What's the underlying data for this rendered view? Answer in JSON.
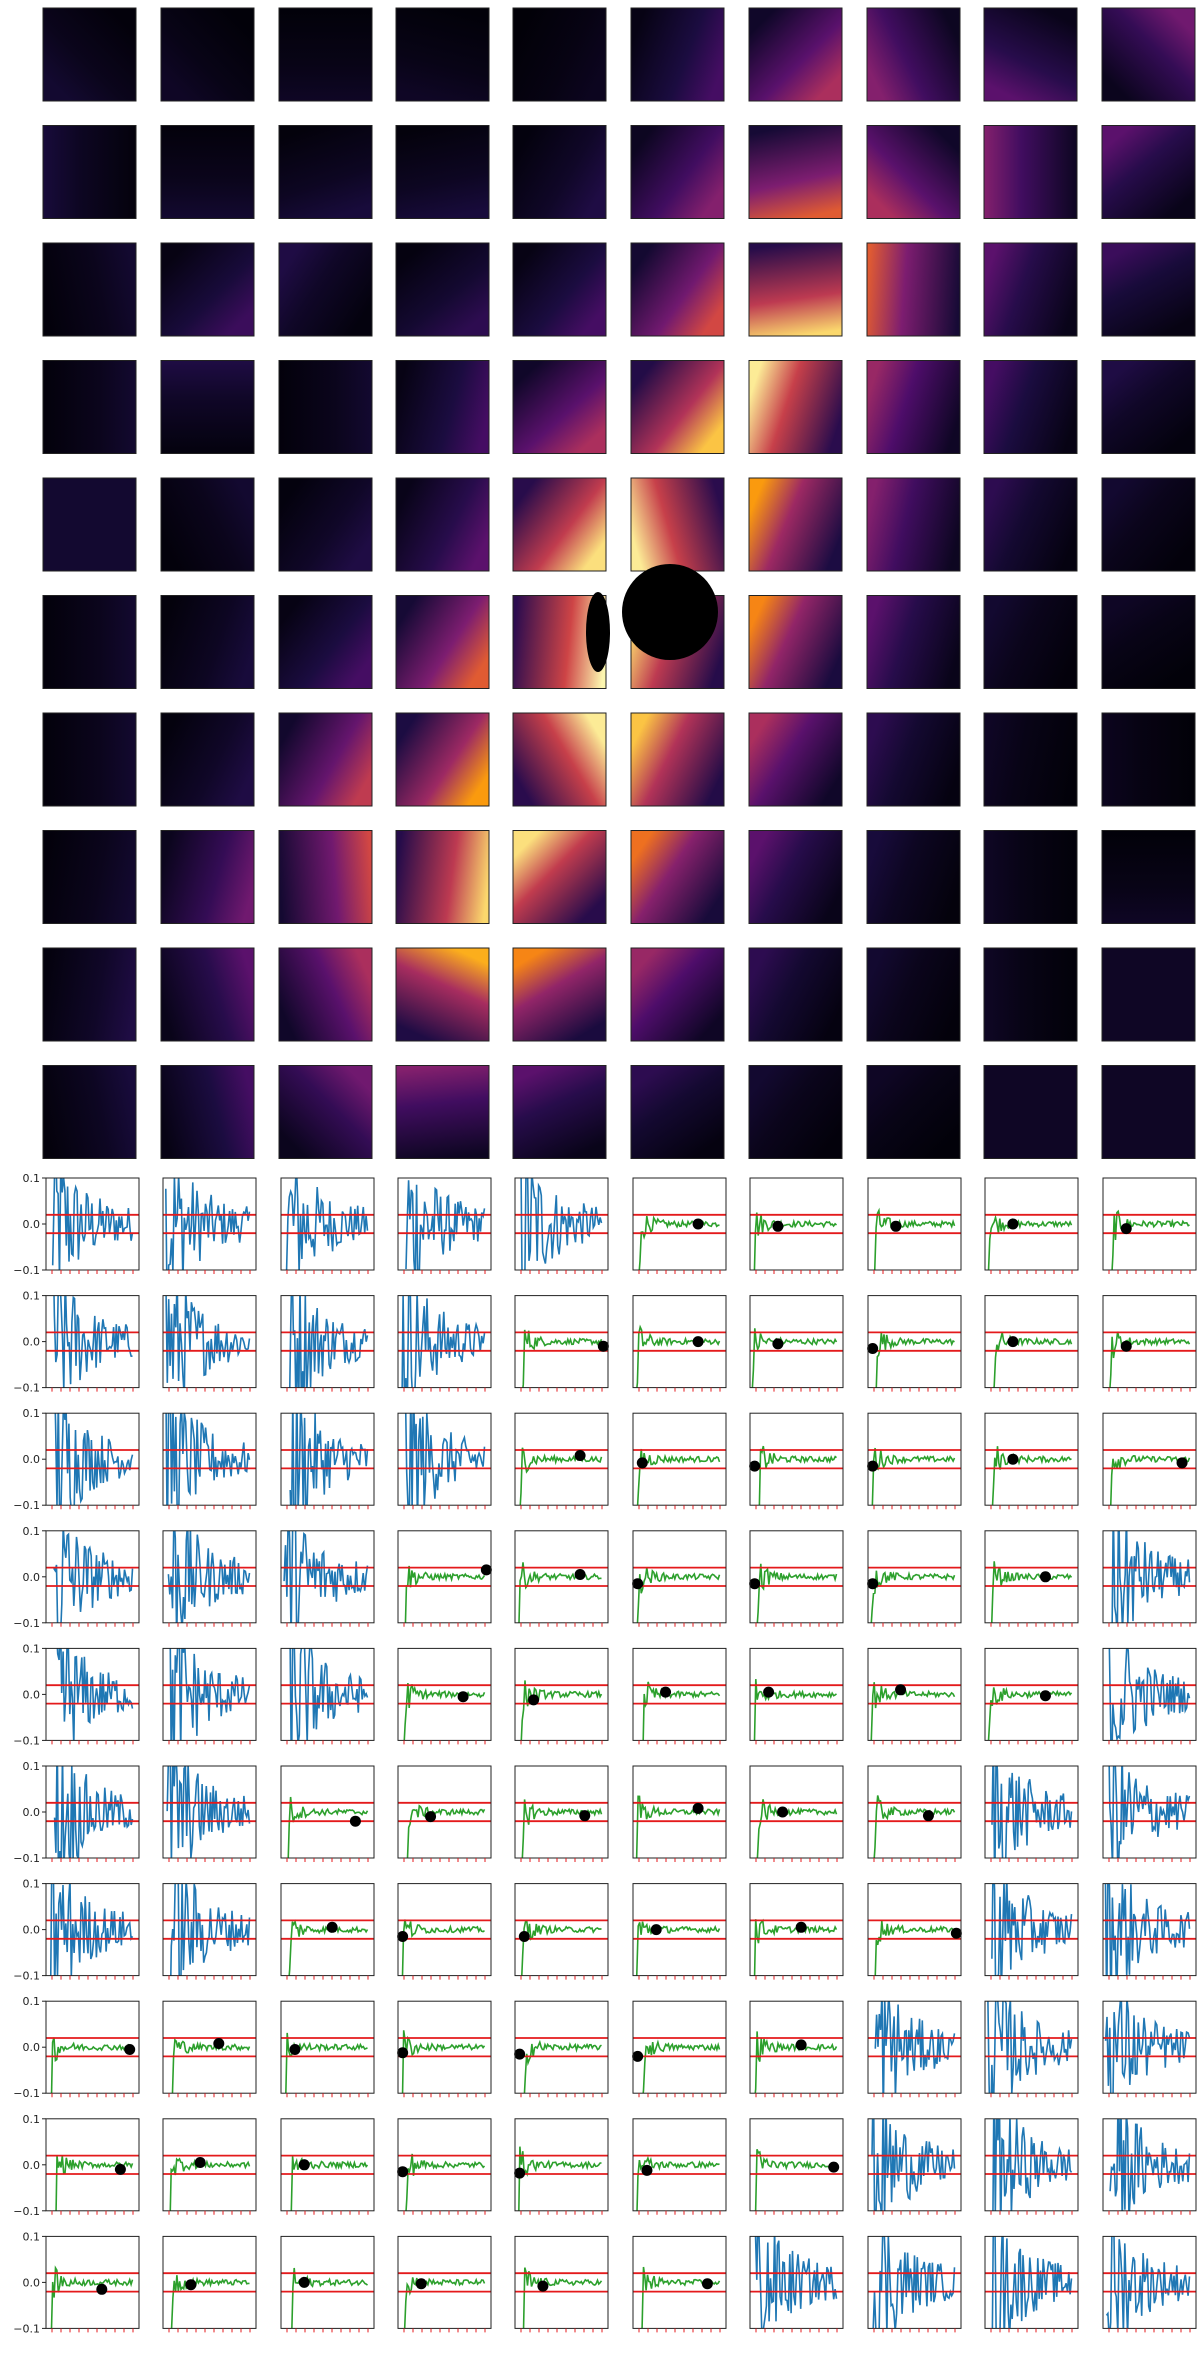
{
  "figure": {
    "title": "",
    "colormap_stops": [
      "#000004",
      "#1b0c41",
      "#4f0d6b",
      "#7e1e70",
      "#a92e5e",
      "#d44842",
      "#f3771a",
      "#fca50a",
      "#fbd464",
      "#fcfdbf"
    ]
  },
  "chart_data": [
    {
      "type": "heatmap",
      "grid_rows": 10,
      "grid_cols": 10,
      "cmap": "magma",
      "clim": [
        0,
        1
      ],
      "cell_peak_values": [
        [
          0.08,
          0.06,
          0.06,
          0.06,
          0.05,
          0.2,
          0.45,
          0.35,
          0.25,
          0.3
        ],
        [
          0.1,
          0.08,
          0.1,
          0.1,
          0.12,
          0.35,
          0.6,
          0.45,
          0.35,
          0.25
        ],
        [
          0.08,
          0.18,
          0.12,
          0.15,
          0.2,
          0.55,
          0.9,
          0.6,
          0.25,
          0.18
        ],
        [
          0.08,
          0.12,
          0.08,
          0.2,
          0.45,
          0.85,
          0.95,
          0.4,
          0.2,
          0.12
        ],
        [
          0.08,
          0.08,
          0.12,
          0.25,
          0.92,
          0.95,
          0.75,
          0.35,
          0.15,
          0.08
        ],
        [
          0.08,
          0.1,
          0.2,
          0.6,
          0.98,
          0.9,
          0.7,
          0.25,
          0.08,
          0.06
        ],
        [
          0.08,
          0.12,
          0.5,
          0.75,
          0.95,
          0.85,
          0.45,
          0.15,
          0.06,
          0.05
        ],
        [
          0.08,
          0.3,
          0.55,
          0.9,
          0.92,
          0.65,
          0.25,
          0.1,
          0.06,
          0.06
        ],
        [
          0.12,
          0.25,
          0.45,
          0.8,
          0.7,
          0.4,
          0.15,
          0.08,
          0.06,
          0.06
        ],
        [
          0.1,
          0.2,
          0.3,
          0.35,
          0.25,
          0.15,
          0.08,
          0.06,
          0.06,
          0.06
        ]
      ]
    },
    {
      "type": "line",
      "grid_rows": 10,
      "grid_cols": 10,
      "ylim": [
        -0.1,
        0.1
      ],
      "y_ticks": [
        "0.1",
        "0.0",
        "−0.1"
      ],
      "reference_lines_y": [
        0.02,
        -0.02
      ],
      "colors": {
        "converged": "#2ca02c",
        "unconverged": "#1f77b4",
        "reference": "#e41a1c",
        "marker": "#000000"
      },
      "panel_status": [
        [
          "U",
          "U",
          "U",
          "U",
          "U",
          "C",
          "C",
          "C",
          "C",
          "C"
        ],
        [
          "U",
          "U",
          "U",
          "U",
          "C",
          "C",
          "C",
          "C",
          "C",
          "C"
        ],
        [
          "U",
          "U",
          "U",
          "U",
          "C",
          "C",
          "C",
          "C",
          "C",
          "C"
        ],
        [
          "U",
          "U",
          "U",
          "C",
          "C",
          "C",
          "C",
          "C",
          "C",
          "U"
        ],
        [
          "U",
          "U",
          "U",
          "C",
          "C",
          "C",
          "C",
          "C",
          "C",
          "U"
        ],
        [
          "U",
          "U",
          "C",
          "C",
          "C",
          "C",
          "C",
          "C",
          "U",
          "U"
        ],
        [
          "U",
          "U",
          "C",
          "C",
          "C",
          "C",
          "C",
          "C",
          "U",
          "U"
        ],
        [
          "C",
          "C",
          "C",
          "C",
          "C",
          "C",
          "C",
          "U",
          "U",
          "U"
        ],
        [
          "C",
          "C",
          "C",
          "C",
          "C",
          "C",
          "C",
          "U",
          "U",
          "U"
        ],
        [
          "C",
          "C",
          "C",
          "C",
          "C",
          "C",
          "U",
          "U",
          "U",
          "U"
        ]
      ],
      "marker_points": [
        [
          null,
          null,
          null,
          null,
          null,
          {
            "x": 0.7,
            "y": 0.0
          },
          {
            "x": 0.3,
            "y": -0.005
          },
          {
            "x": 0.3,
            "y": -0.005
          },
          {
            "x": 0.3,
            "y": 0.0
          },
          {
            "x": 0.25,
            "y": -0.01
          }
        ],
        [
          null,
          null,
          null,
          null,
          {
            "x": 0.95,
            "y": -0.01
          },
          {
            "x": 0.7,
            "y": 0.0
          },
          {
            "x": 0.3,
            "y": -0.005
          },
          {
            "x": 0.05,
            "y": -0.015
          },
          {
            "x": 0.3,
            "y": 0.0
          },
          {
            "x": 0.25,
            "y": -0.01
          }
        ],
        [
          null,
          null,
          null,
          null,
          {
            "x": 0.7,
            "y": 0.008
          },
          {
            "x": 0.1,
            "y": -0.008
          },
          {
            "x": 0.05,
            "y": -0.015
          },
          {
            "x": 0.05,
            "y": -0.015
          },
          {
            "x": 0.3,
            "y": 0.0
          },
          {
            "x": 0.85,
            "y": -0.008
          }
        ],
        [
          null,
          null,
          null,
          {
            "x": 0.95,
            "y": 0.015
          },
          {
            "x": 0.7,
            "y": 0.005
          },
          {
            "x": 0.05,
            "y": -0.015
          },
          {
            "x": 0.05,
            "y": -0.015
          },
          {
            "x": 0.05,
            "y": -0.015
          },
          {
            "x": 0.65,
            "y": 0.0
          },
          null
        ],
        [
          null,
          null,
          null,
          {
            "x": 0.7,
            "y": -0.005
          },
          {
            "x": 0.2,
            "y": -0.012
          },
          {
            "x": 0.35,
            "y": 0.005
          },
          {
            "x": 0.2,
            "y": 0.005
          },
          {
            "x": 0.35,
            "y": 0.01
          },
          {
            "x": 0.65,
            "y": -0.003
          },
          null
        ],
        [
          null,
          null,
          {
            "x": 0.8,
            "y": -0.02
          },
          {
            "x": 0.35,
            "y": -0.01
          },
          {
            "x": 0.75,
            "y": -0.008
          },
          {
            "x": 0.7,
            "y": 0.008
          },
          {
            "x": 0.35,
            "y": 0.0
          },
          {
            "x": 0.65,
            "y": -0.008
          },
          null,
          null
        ],
        [
          null,
          null,
          {
            "x": 0.55,
            "y": 0.005
          },
          {
            "x": 0.05,
            "y": -0.015
          },
          {
            "x": 0.1,
            "y": -0.015
          },
          {
            "x": 0.25,
            "y": 0.0
          },
          {
            "x": 0.55,
            "y": 0.005
          },
          {
            "x": 0.95,
            "y": -0.008
          },
          null,
          null
        ],
        [
          {
            "x": 0.9,
            "y": -0.005
          },
          {
            "x": 0.6,
            "y": 0.008
          },
          {
            "x": 0.15,
            "y": -0.005
          },
          {
            "x": 0.05,
            "y": -0.012
          },
          {
            "x": 0.05,
            "y": -0.015
          },
          {
            "x": 0.05,
            "y": -0.02
          },
          {
            "x": 0.55,
            "y": 0.005
          },
          null,
          null,
          null
        ],
        [
          {
            "x": 0.8,
            "y": -0.01
          },
          {
            "x": 0.4,
            "y": 0.005
          },
          {
            "x": 0.25,
            "y": 0.0
          },
          {
            "x": 0.05,
            "y": -0.015
          },
          {
            "x": 0.05,
            "y": -0.018
          },
          {
            "x": 0.15,
            "y": -0.012
          },
          {
            "x": 0.9,
            "y": -0.005
          },
          null,
          null,
          null
        ],
        [
          {
            "x": 0.6,
            "y": -0.015
          },
          {
            "x": 0.3,
            "y": -0.005
          },
          {
            "x": 0.25,
            "y": 0.0
          },
          {
            "x": 0.25,
            "y": -0.003
          },
          {
            "x": 0.3,
            "y": -0.008
          },
          {
            "x": 0.8,
            "y": -0.003
          },
          null,
          null,
          null,
          null
        ]
      ]
    }
  ]
}
